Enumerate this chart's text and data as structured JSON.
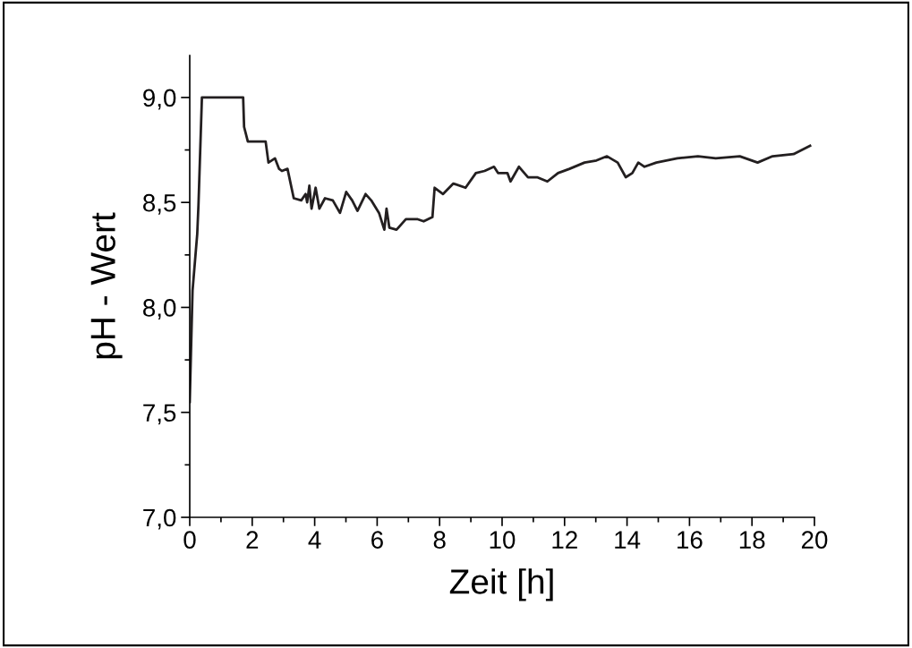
{
  "chart_data": {
    "type": "line",
    "xlabel": "Zeit [h]",
    "ylabel": "pH - Wert",
    "xlim": [
      0,
      20
    ],
    "xticks": [
      0,
      2,
      4,
      6,
      8,
      10,
      12,
      14,
      16,
      18,
      20
    ],
    "ylim": [
      7.0,
      9.2
    ],
    "yticks": [
      {
        "value": 7.0,
        "label": "7,0"
      },
      {
        "value": 7.5,
        "label": "7,5"
      },
      {
        "value": 8.0,
        "label": "8,0"
      },
      {
        "value": 8.5,
        "label": "8,5"
      },
      {
        "value": 9.0,
        "label": "9,0"
      }
    ],
    "grid": false,
    "legend": false,
    "marker": "none",
    "line_style": "solid",
    "series": [
      {
        "color": "#231f20",
        "x": [
          0,
          0.09,
          0.24,
          0.28,
          0.39,
          1.71,
          1.74,
          1.86,
          2.43,
          2.52,
          2.73,
          2.86,
          2.95,
          3.13,
          3.33,
          3.57,
          3.71,
          3.76,
          3.83,
          3.9,
          4.03,
          4.15,
          4.33,
          4.58,
          4.81,
          5.01,
          5.2,
          5.37,
          5.63,
          5.81,
          6.06,
          6.23,
          6.3,
          6.39,
          6.62,
          6.92,
          7.3,
          7.49,
          7.77,
          7.84,
          8.11,
          8.44,
          8.83,
          9.16,
          9.44,
          9.74,
          9.87,
          10.17,
          10.27,
          10.54,
          10.83,
          11.12,
          11.45,
          11.79,
          12.16,
          12.64,
          13.02,
          13.36,
          13.7,
          13.96,
          14.17,
          14.36,
          14.56,
          14.94,
          15.61,
          16.27,
          16.84,
          17.61,
          18.18,
          18.66,
          19.33,
          19.86
        ],
        "values": [
          7.55,
          8.08,
          8.35,
          8.49,
          9.0,
          9.0,
          8.86,
          8.79,
          8.79,
          8.69,
          8.71,
          8.66,
          8.65,
          8.66,
          8.52,
          8.51,
          8.54,
          8.5,
          8.58,
          8.47,
          8.57,
          8.47,
          8.52,
          8.51,
          8.45,
          8.55,
          8.51,
          8.46,
          8.54,
          8.51,
          8.45,
          8.37,
          8.47,
          8.38,
          8.37,
          8.42,
          8.42,
          8.41,
          8.43,
          8.57,
          8.54,
          8.59,
          8.57,
          8.64,
          8.65,
          8.67,
          8.64,
          8.64,
          8.6,
          8.67,
          8.62,
          8.62,
          8.6,
          8.64,
          8.66,
          8.69,
          8.7,
          8.72,
          8.69,
          8.62,
          8.64,
          8.69,
          8.67,
          8.69,
          8.71,
          8.72,
          8.71,
          8.72,
          8.69,
          8.72,
          8.73,
          8.77
        ]
      }
    ]
  }
}
